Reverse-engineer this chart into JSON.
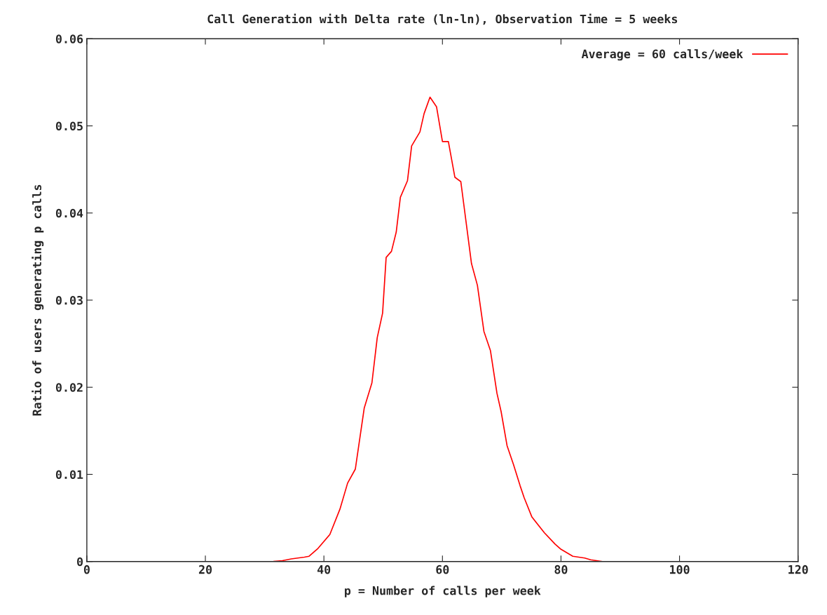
{
  "chart_data": {
    "type": "line",
    "title": "Call Generation with Delta rate (ln-ln), Observation Time = 5 weeks",
    "xlabel": "p = Number of calls per week",
    "ylabel": "Ratio of users generating p calls",
    "xlim": [
      0,
      120
    ],
    "xticks": [
      0,
      20,
      40,
      60,
      80,
      100,
      120
    ],
    "ylim": [
      0,
      0.06
    ],
    "yticks": [
      {
        "value": 0,
        "label": "0"
      },
      {
        "value": 0.01,
        "label": "0.01"
      },
      {
        "value": 0.02,
        "label": "0.02"
      },
      {
        "value": 0.03,
        "label": "0.03"
      },
      {
        "value": 0.04,
        "label": "0.04"
      },
      {
        "value": 0.05,
        "label": "0.05"
      },
      {
        "value": 0.06,
        "label": "0.06"
      }
    ],
    "grid": false,
    "legend": "top right",
    "marker": "none",
    "line_style": "solid",
    "series": [
      {
        "name": "Average = 60 calls/week",
        "color": "#ff0000",
        "x": [
          31.5,
          33,
          34.5,
          36.7,
          37.5,
          39,
          41,
          42.7,
          44,
          45.3,
          46.8,
          48.1,
          49,
          49.9,
          50.5,
          51.4,
          52.2,
          52.9,
          54.1,
          54.8,
          56.2,
          56.9,
          57.9,
          59,
          60,
          61,
          62.1,
          63.1,
          64.9,
          65.9,
          67,
          68.1,
          69.2,
          69.9,
          70.9,
          72,
          73.1,
          73.8,
          75.1,
          77.2,
          79,
          80,
          82,
          84,
          85,
          87
        ],
        "values": [
          0,
          0.0001,
          0.0003,
          0.0005,
          0.0006,
          0.0015,
          0.0031,
          0.006,
          0.009,
          0.0106,
          0.0176,
          0.0205,
          0.0257,
          0.0285,
          0.0349,
          0.0356,
          0.0378,
          0.0418,
          0.0437,
          0.0477,
          0.0493,
          0.0514,
          0.0533,
          0.0522,
          0.0482,
          0.0482,
          0.0441,
          0.0436,
          0.0342,
          0.0317,
          0.0264,
          0.0242,
          0.0193,
          0.0172,
          0.0133,
          0.0111,
          0.0087,
          0.0073,
          0.0051,
          0.0033,
          0.002,
          0.0014,
          0.0006,
          0.0004,
          0.0002,
          0
        ]
      }
    ]
  }
}
